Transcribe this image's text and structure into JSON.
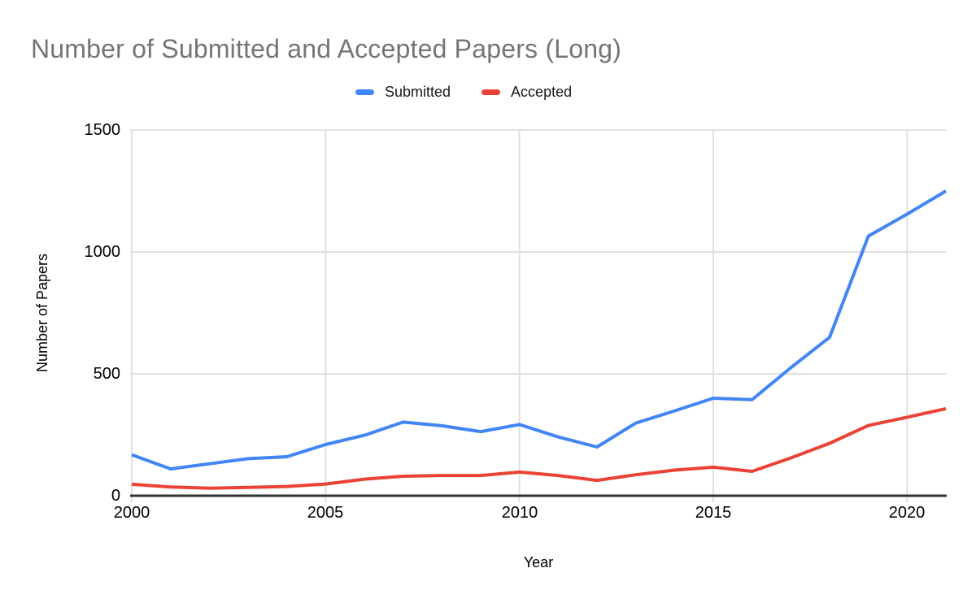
{
  "chart_data": {
    "type": "line",
    "title": "Number of Submitted and Accepted Papers (Long)",
    "xlabel": "Year",
    "ylabel": "Number of Papers",
    "x": [
      2000,
      2001,
      2002,
      2003,
      2004,
      2005,
      2006,
      2007,
      2008,
      2009,
      2010,
      2011,
      2012,
      2013,
      2014,
      2015,
      2016,
      2017,
      2018,
      2019,
      2020,
      2021
    ],
    "series": [
      {
        "name": "Submitted",
        "color": "#4285f4",
        "values": [
          168,
          110,
          131,
          152,
          160,
          210,
          248,
          302,
          287,
          263,
          292,
          241,
          200,
          298,
          348,
          400,
          394,
          525,
          650,
          1065,
          1155,
          1250
        ]
      },
      {
        "name": "Accepted",
        "color": "#ea4335",
        "values": [
          47,
          36,
          31,
          34,
          38,
          48,
          68,
          80,
          83,
          83,
          97,
          83,
          63,
          86,
          105,
          117,
          100,
          155,
          215,
          288,
          322,
          357
        ]
      }
    ],
    "xlim": [
      2000,
      2021
    ],
    "ylim": [
      0,
      1500
    ],
    "y_ticks": [
      0,
      500,
      1000,
      1500
    ],
    "x_ticks": [
      2000,
      2005,
      2010,
      2015,
      2020
    ],
    "grid": true,
    "legend_position": "top",
    "colors": {
      "title_text": "#757575",
      "tick_text": "#000000",
      "gridline": "#e0e0e0",
      "axis_line": "#333333",
      "background": "#ffffff"
    }
  }
}
